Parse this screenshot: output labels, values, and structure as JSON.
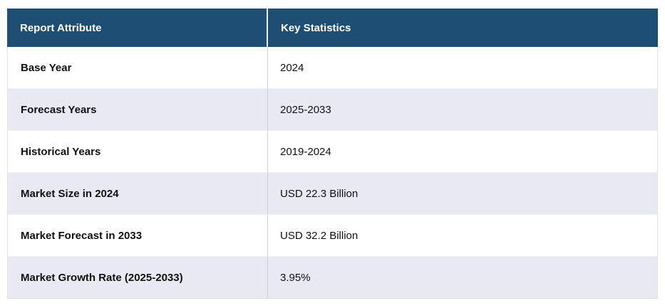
{
  "colors": {
    "header_bg": "#1f4e74",
    "header_text": "#ffffff",
    "row_bg": "#ffffff",
    "row_alt_bg": "#e8e9f3",
    "body_text": "#111111",
    "divider": "#cfcfd6"
  },
  "table": {
    "columns": [
      "Report Attribute",
      "Key Statistics"
    ],
    "rows": [
      {
        "attribute": "Base Year",
        "value": "2024"
      },
      {
        "attribute": "Forecast Years",
        "value": "2025-2033"
      },
      {
        "attribute": "Historical Years",
        "value": "2019-2024"
      },
      {
        "attribute": "Market Size in 2024",
        "value": "USD 22.3 Billion"
      },
      {
        "attribute": "Market Forecast in 2033",
        "value": "USD 32.2 Billion"
      },
      {
        "attribute": "Market Growth Rate (2025-2033)",
        "value": "3.95%"
      }
    ]
  },
  "chart_data": {
    "type": "table",
    "columns": [
      "Report Attribute",
      "Key Statistics"
    ],
    "rows": [
      [
        "Base Year",
        "2024"
      ],
      [
        "Forecast Years",
        "2025-2033"
      ],
      [
        "Historical Years",
        "2019-2024"
      ],
      [
        "Market Size in 2024",
        "USD 22.3 Billion"
      ],
      [
        "Market Forecast in 2033",
        "USD 32.2 Billion"
      ],
      [
        "Market Growth Rate (2025-2033)",
        "3.95%"
      ]
    ],
    "notes": {
      "base_year": 2024,
      "forecast_years": [
        2025,
        2033
      ],
      "historical_years": [
        2019,
        2024
      ],
      "market_size_2024_usd_billion": 22.3,
      "market_forecast_2033_usd_billion": 32.2,
      "market_growth_rate_pct": 3.95
    }
  }
}
